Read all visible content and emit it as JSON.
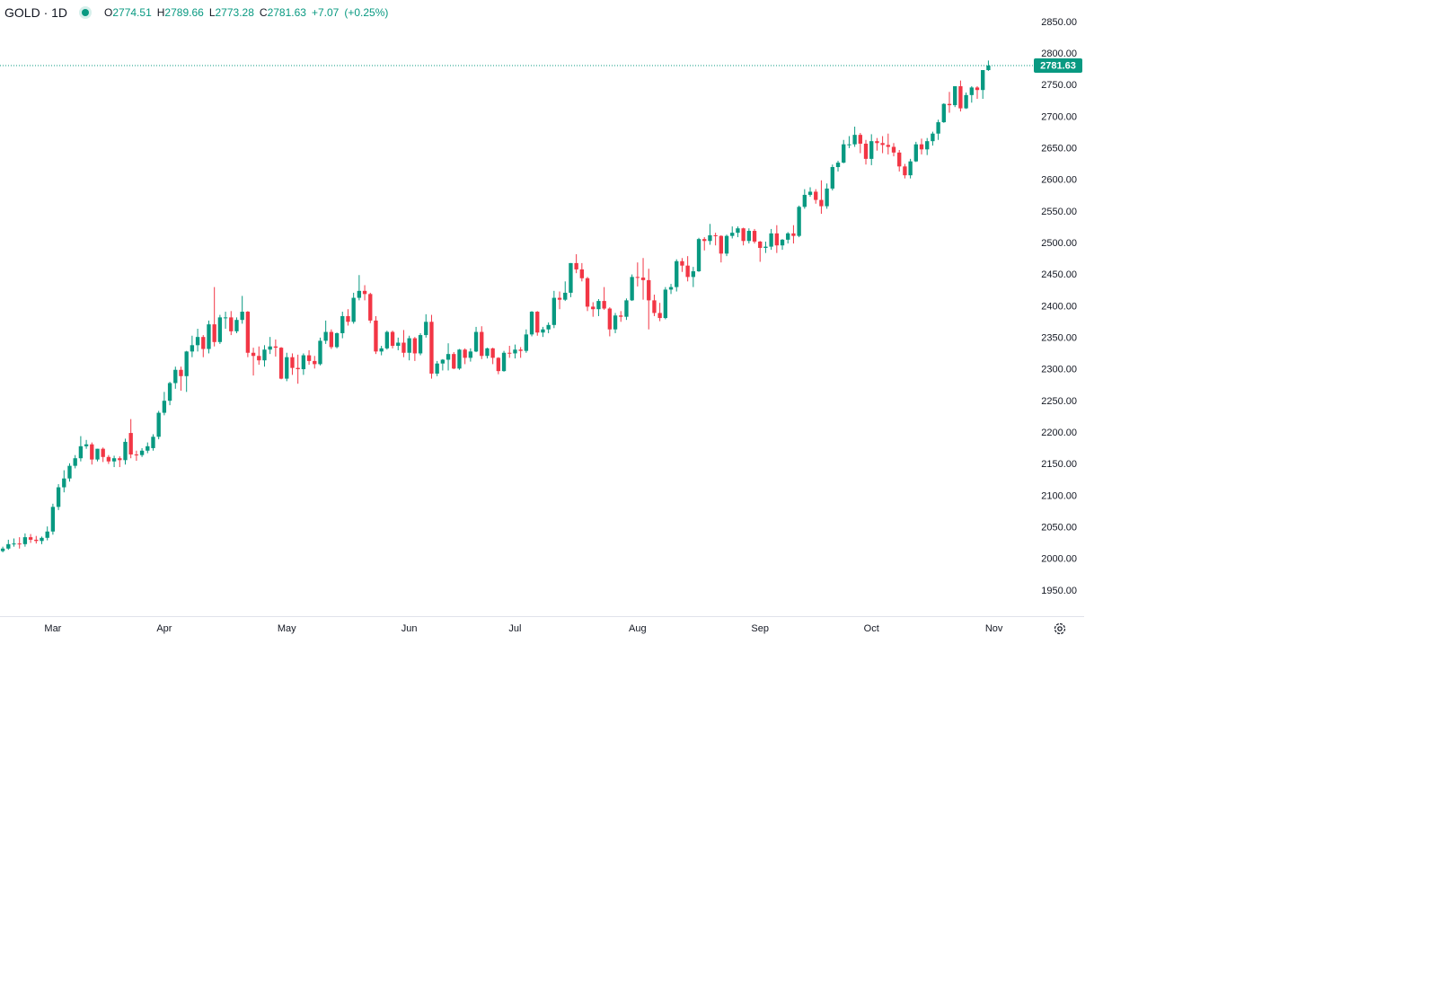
{
  "chart_data": {
    "type": "candlestick",
    "title": "GOLD · 1D",
    "ohlc_labels": [
      "O",
      "H",
      "L",
      "C"
    ],
    "change": "+7.07",
    "change_percent": "(+0.25%)",
    "up_color": "#089981",
    "down_color": "#f23645",
    "grid": false,
    "candles": [
      [
        2013,
        2020,
        2011,
        2017
      ],
      [
        2017,
        2031,
        2015,
        2024
      ],
      [
        2024,
        2033,
        2020,
        2025
      ],
      [
        2025,
        2035,
        2017,
        2024
      ],
      [
        2024,
        2041,
        2020,
        2035
      ],
      [
        2035,
        2040,
        2026,
        2031
      ],
      [
        2031,
        2037,
        2025,
        2029
      ],
      [
        2029,
        2036,
        2024,
        2034
      ],
      [
        2034,
        2052,
        2030,
        2044
      ],
      [
        2044,
        2088,
        2039,
        2083
      ],
      [
        2083,
        2119,
        2078,
        2114
      ],
      [
        2114,
        2141,
        2106,
        2128
      ],
      [
        2128,
        2152,
        2123,
        2148
      ],
      [
        2148,
        2165,
        2144,
        2160
      ],
      [
        2160,
        2195,
        2155,
        2179
      ],
      [
        2179,
        2189,
        2175,
        2182
      ],
      [
        2182,
        2185,
        2150,
        2158
      ],
      [
        2158,
        2175,
        2155,
        2175
      ],
      [
        2175,
        2177,
        2154,
        2162
      ],
      [
        2162,
        2165,
        2151,
        2155
      ],
      [
        2155,
        2164,
        2146,
        2160
      ],
      [
        2160,
        2163,
        2146,
        2157
      ],
      [
        2157,
        2191,
        2150,
        2186
      ],
      [
        2200,
        2222,
        2160,
        2166
      ],
      [
        2166,
        2172,
        2156,
        2165
      ],
      [
        2165,
        2176,
        2162,
        2172
      ],
      [
        2172,
        2185,
        2168,
        2179
      ],
      [
        2176,
        2198,
        2172,
        2194
      ],
      [
        2194,
        2235,
        2190,
        2232
      ],
      [
        2232,
        2265,
        2228,
        2251
      ],
      [
        2251,
        2281,
        2244,
        2279
      ],
      [
        2279,
        2305,
        2270,
        2300
      ],
      [
        2300,
        2305,
        2267,
        2290
      ],
      [
        2290,
        2330,
        2265,
        2329
      ],
      [
        2329,
        2354,
        2320,
        2339
      ],
      [
        2339,
        2365,
        2329,
        2352
      ],
      [
        2352,
        2355,
        2320,
        2333
      ],
      [
        2333,
        2378,
        2326,
        2372
      ],
      [
        2372,
        2431,
        2337,
        2344
      ],
      [
        2344,
        2387,
        2341,
        2383
      ],
      [
        2383,
        2392,
        2365,
        2383
      ],
      [
        2383,
        2393,
        2355,
        2361
      ],
      [
        2361,
        2383,
        2358,
        2379
      ],
      [
        2379,
        2417,
        2373,
        2392
      ],
      [
        2392,
        2393,
        2320,
        2327
      ],
      [
        2327,
        2335,
        2291,
        2322
      ],
      [
        2322,
        2337,
        2308,
        2315
      ],
      [
        2315,
        2339,
        2305,
        2332
      ],
      [
        2332,
        2352,
        2325,
        2337
      ],
      [
        2337,
        2348,
        2321,
        2335
      ],
      [
        2335,
        2336,
        2285,
        2286
      ],
      [
        2286,
        2327,
        2282,
        2320
      ],
      [
        2320,
        2326,
        2292,
        2303
      ],
      [
        2303,
        2324,
        2278,
        2301
      ],
      [
        2301,
        2326,
        2292,
        2323
      ],
      [
        2323,
        2331,
        2308,
        2314
      ],
      [
        2314,
        2322,
        2302,
        2309
      ],
      [
        2309,
        2351,
        2307,
        2346
      ],
      [
        2346,
        2378,
        2341,
        2360
      ],
      [
        2360,
        2364,
        2333,
        2336
      ],
      [
        2336,
        2359,
        2334,
        2358
      ],
      [
        2358,
        2392,
        2350,
        2385
      ],
      [
        2385,
        2396,
        2370,
        2376
      ],
      [
        2376,
        2422,
        2373,
        2414
      ],
      [
        2414,
        2450,
        2410,
        2425
      ],
      [
        2425,
        2434,
        2410,
        2420
      ],
      [
        2420,
        2422,
        2374,
        2378
      ],
      [
        2378,
        2385,
        2325,
        2329
      ],
      [
        2329,
        2338,
        2323,
        2334
      ],
      [
        2334,
        2362,
        2332,
        2360
      ],
      [
        2360,
        2362,
        2334,
        2338
      ],
      [
        2338,
        2351,
        2331,
        2343
      ],
      [
        2343,
        2363,
        2320,
        2327
      ],
      [
        2327,
        2354,
        2315,
        2350
      ],
      [
        2350,
        2352,
        2314,
        2326
      ],
      [
        2326,
        2358,
        2323,
        2355
      ],
      [
        2355,
        2388,
        2351,
        2376
      ],
      [
        2376,
        2387,
        2286,
        2294
      ],
      [
        2294,
        2314,
        2290,
        2310
      ],
      [
        2310,
        2317,
        2299,
        2316
      ],
      [
        2316,
        2342,
        2299,
        2325
      ],
      [
        2325,
        2328,
        2301,
        2302
      ],
      [
        2302,
        2333,
        2300,
        2332
      ],
      [
        2332,
        2334,
        2309,
        2319
      ],
      [
        2319,
        2334,
        2313,
        2329
      ],
      [
        2329,
        2368,
        2328,
        2360
      ],
      [
        2360,
        2369,
        2317,
        2322
      ],
      [
        2322,
        2335,
        2318,
        2334
      ],
      [
        2334,
        2335,
        2309,
        2319
      ],
      [
        2319,
        2320,
        2293,
        2298
      ],
      [
        2298,
        2330,
        2297,
        2327
      ],
      [
        2327,
        2338,
        2319,
        2326
      ],
      [
        2326,
        2340,
        2318,
        2332
      ],
      [
        2332,
        2336,
        2319,
        2330
      ],
      [
        2330,
        2364,
        2327,
        2356
      ],
      [
        2356,
        2393,
        2353,
        2392
      ],
      [
        2392,
        2393,
        2354,
        2359
      ],
      [
        2359,
        2368,
        2352,
        2364
      ],
      [
        2364,
        2375,
        2358,
        2371
      ],
      [
        2371,
        2425,
        2366,
        2414
      ],
      [
        2414,
        2424,
        2396,
        2411
      ],
      [
        2411,
        2440,
        2409,
        2422
      ],
      [
        2422,
        2469,
        2415,
        2469
      ],
      [
        2469,
        2483,
        2453,
        2459
      ],
      [
        2459,
        2469,
        2440,
        2445
      ],
      [
        2445,
        2447,
        2393,
        2400
      ],
      [
        2400,
        2407,
        2384,
        2396
      ],
      [
        2396,
        2412,
        2385,
        2409
      ],
      [
        2409,
        2431,
        2395,
        2397
      ],
      [
        2397,
        2399,
        2353,
        2364
      ],
      [
        2364,
        2390,
        2358,
        2386
      ],
      [
        2386,
        2393,
        2376,
        2384
      ],
      [
        2384,
        2413,
        2379,
        2410
      ],
      [
        2410,
        2451,
        2409,
        2447
      ],
      [
        2447,
        2470,
        2432,
        2446
      ],
      [
        2446,
        2477,
        2411,
        2442
      ],
      [
        2442,
        2460,
        2364,
        2410
      ],
      [
        2410,
        2419,
        2385,
        2390
      ],
      [
        2390,
        2406,
        2377,
        2382
      ],
      [
        2382,
        2431,
        2380,
        2427
      ],
      [
        2427,
        2436,
        2420,
        2431
      ],
      [
        2431,
        2475,
        2424,
        2472
      ],
      [
        2472,
        2477,
        2455,
        2465
      ],
      [
        2465,
        2480,
        2440,
        2447
      ],
      [
        2447,
        2463,
        2431,
        2456
      ],
      [
        2456,
        2509,
        2455,
        2507
      ],
      [
        2507,
        2510,
        2489,
        2504
      ],
      [
        2504,
        2531,
        2498,
        2513
      ],
      [
        2513,
        2517,
        2497,
        2512
      ],
      [
        2512,
        2513,
        2470,
        2484
      ],
      [
        2484,
        2514,
        2480,
        2512
      ],
      [
        2512,
        2527,
        2508,
        2517
      ],
      [
        2517,
        2527,
        2510,
        2524
      ],
      [
        2524,
        2525,
        2497,
        2504
      ],
      [
        2504,
        2524,
        2500,
        2520
      ],
      [
        2520,
        2523,
        2500,
        2503
      ],
      [
        2503,
        2504,
        2471,
        2493
      ],
      [
        2493,
        2503,
        2485,
        2495
      ],
      [
        2495,
        2523,
        2490,
        2516
      ],
      [
        2516,
        2529,
        2485,
        2497
      ],
      [
        2497,
        2507,
        2490,
        2506
      ],
      [
        2506,
        2518,
        2500,
        2516
      ],
      [
        2516,
        2529,
        2500,
        2512
      ],
      [
        2512,
        2560,
        2510,
        2558
      ],
      [
        2558,
        2586,
        2555,
        2577
      ],
      [
        2577,
        2589,
        2574,
        2582
      ],
      [
        2582,
        2586,
        2563,
        2569
      ],
      [
        2569,
        2600,
        2547,
        2559
      ],
      [
        2559,
        2595,
        2555,
        2587
      ],
      [
        2587,
        2625,
        2584,
        2621
      ],
      [
        2621,
        2631,
        2614,
        2628
      ],
      [
        2628,
        2664,
        2627,
        2657
      ],
      [
        2657,
        2670,
        2651,
        2657
      ],
      [
        2657,
        2685,
        2653,
        2672
      ],
      [
        2672,
        2675,
        2643,
        2658
      ],
      [
        2658,
        2664,
        2625,
        2634
      ],
      [
        2634,
        2673,
        2624,
        2662
      ],
      [
        2662,
        2667,
        2647,
        2659
      ],
      [
        2659,
        2670,
        2643,
        2656
      ],
      [
        2656,
        2674,
        2641,
        2653
      ],
      [
        2653,
        2659,
        2638,
        2644
      ],
      [
        2644,
        2648,
        2614,
        2622
      ],
      [
        2622,
        2626,
        2603,
        2608
      ],
      [
        2608,
        2634,
        2603,
        2630
      ],
      [
        2630,
        2661,
        2629,
        2657
      ],
      [
        2657,
        2666,
        2641,
        2649
      ],
      [
        2649,
        2667,
        2640,
        2662
      ],
      [
        2662,
        2677,
        2655,
        2674
      ],
      [
        2674,
        2696,
        2664,
        2692
      ],
      [
        2692,
        2722,
        2691,
        2721
      ],
      [
        2721,
        2740,
        2707,
        2719
      ],
      [
        2719,
        2749,
        2716,
        2749
      ],
      [
        2749,
        2758,
        2709,
        2714
      ],
      [
        2714,
        2739,
        2713,
        2735
      ],
      [
        2735,
        2749,
        2723,
        2747
      ],
      [
        2747,
        2749,
        2729,
        2743
      ],
      [
        2743,
        2774,
        2729,
        2774.56
      ],
      [
        2774.51,
        2789.66,
        2773.28,
        2781.63
      ]
    ],
    "xlim": [
      -0.5,
      185
    ],
    "xticks": [
      {
        "value": 9,
        "label": "Mar"
      },
      {
        "value": 29,
        "label": "Apr"
      },
      {
        "value": 51,
        "label": "May"
      },
      {
        "value": 73,
        "label": "Jun"
      },
      {
        "value": 92,
        "label": "Jul"
      },
      {
        "value": 114,
        "label": "Aug"
      },
      {
        "value": 136,
        "label": "Sep"
      },
      {
        "value": 156,
        "label": "Oct"
      },
      {
        "value": 178,
        "label": "Nov"
      }
    ],
    "ylim": [
      1910,
      2885.5
    ],
    "yticks": [
      {
        "value": 1950,
        "label": "1950.00"
      },
      {
        "value": 2000,
        "label": "2000.00"
      },
      {
        "value": 2050,
        "label": "2050.00"
      },
      {
        "value": 2100,
        "label": "2100.00"
      },
      {
        "value": 2150,
        "label": "2150.00"
      },
      {
        "value": 2200,
        "label": "2200.00"
      },
      {
        "value": 2250,
        "label": "2250.00"
      },
      {
        "value": 2300,
        "label": "2300.00"
      },
      {
        "value": 2350,
        "label": "2350.00"
      },
      {
        "value": 2400,
        "label": "2400.00"
      },
      {
        "value": 2450,
        "label": "2450.00"
      },
      {
        "value": 2500,
        "label": "2500.00"
      },
      {
        "value": 2550,
        "label": "2550.00"
      },
      {
        "value": 2600,
        "label": "2600.00"
      },
      {
        "value": 2650,
        "label": "2650.00"
      },
      {
        "value": 2700,
        "label": "2700.00"
      },
      {
        "value": 2750,
        "label": "2750.00"
      },
      {
        "value": 2800,
        "label": "2800.00"
      },
      {
        "value": 2850,
        "label": "2850.00"
      }
    ]
  }
}
